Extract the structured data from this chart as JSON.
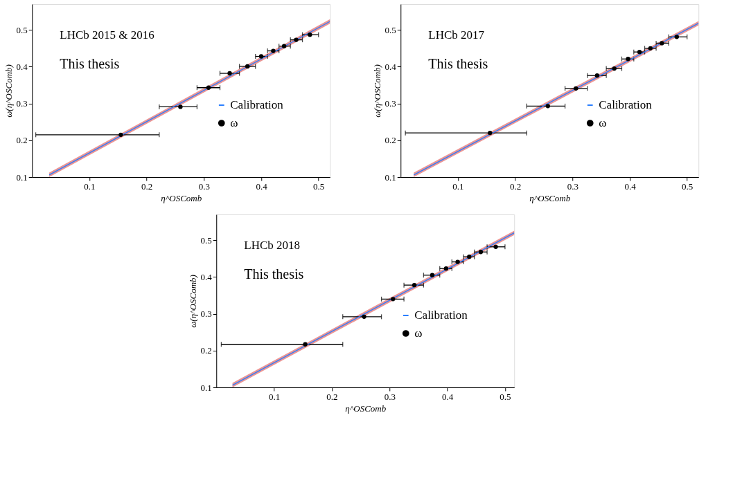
{
  "chart_data": [
    {
      "type": "scatter",
      "xlabel": "η^OSComb",
      "ylabel": "ω(η^OSComb)",
      "annotations": [
        "LHCb 2015 & 2016",
        "This thesis"
      ],
      "xlim": [
        0.0,
        0.52
      ],
      "ylim": [
        0.1,
        0.57
      ],
      "xticks": [
        0.1,
        0.2,
        0.3,
        0.4,
        0.5
      ],
      "yticks": [
        0.1,
        0.2,
        0.3,
        0.4,
        0.5
      ],
      "grid": false,
      "legend": "right",
      "marker": "circle",
      "series": [
        {
          "name": "Calibration",
          "type": "line",
          "marker": "none",
          "color": "#2a7fff",
          "x": [
            0.03,
            0.52
          ],
          "values": [
            0.106,
            0.523
          ],
          "lower": [
            0.1,
            0.517
          ],
          "upper": [
            0.112,
            0.529
          ]
        },
        {
          "name": "ω",
          "color": "#000000",
          "x": [
            0.155,
            0.259,
            0.308,
            0.345,
            0.376,
            0.4,
            0.421,
            0.44,
            0.461,
            0.485
          ],
          "values": [
            0.215,
            0.291,
            0.343,
            0.382,
            0.401,
            0.428,
            0.443,
            0.456,
            0.473,
            0.487
          ],
          "xerrors": [
            [
              0.0065,
              0.222
            ],
            [
              0.222,
              0.288
            ],
            [
              0.288,
              0.328
            ],
            [
              0.328,
              0.362
            ],
            [
              0.362,
              0.39
            ],
            [
              0.39,
              0.411
            ],
            [
              0.411,
              0.431
            ],
            [
              0.431,
              0.451
            ],
            [
              0.451,
              0.472
            ],
            [
              0.472,
              0.5
            ]
          ]
        }
      ]
    },
    {
      "type": "scatter",
      "xlabel": "η^OSComb",
      "ylabel": "ω(η^OSComb)",
      "annotations": [
        "LHCb 2017",
        "This thesis"
      ],
      "xlim": [
        0.0,
        0.52
      ],
      "ylim": [
        0.1,
        0.57
      ],
      "xticks": [
        0.1,
        0.2,
        0.3,
        0.4,
        0.5
      ],
      "yticks": [
        0.1,
        0.2,
        0.3,
        0.4,
        0.5
      ],
      "grid": false,
      "legend": "right",
      "marker": "circle",
      "series": [
        {
          "name": "Calibration",
          "type": "line",
          "marker": "none",
          "color": "#2a7fff",
          "x": [
            0.023,
            0.52
          ],
          "values": [
            0.106,
            0.518
          ],
          "lower": [
            0.1,
            0.512
          ],
          "upper": [
            0.112,
            0.524
          ]
        },
        {
          "name": "ω",
          "color": "#000000",
          "x": [
            0.156,
            0.257,
            0.306,
            0.343,
            0.373,
            0.397,
            0.417,
            0.436,
            0.456,
            0.482
          ],
          "values": [
            0.22,
            0.293,
            0.341,
            0.376,
            0.395,
            0.421,
            0.44,
            0.45,
            0.464,
            0.481
          ],
          "xerrors": [
            [
              0.0083,
              0.22
            ],
            [
              0.22,
              0.287
            ],
            [
              0.287,
              0.326
            ],
            [
              0.326,
              0.359
            ],
            [
              0.359,
              0.386
            ],
            [
              0.386,
              0.407
            ],
            [
              0.407,
              0.426
            ],
            [
              0.426,
              0.446
            ],
            [
              0.446,
              0.468
            ],
            [
              0.468,
              0.5
            ]
          ]
        }
      ]
    },
    {
      "type": "scatter",
      "xlabel": "η^OSComb",
      "ylabel": "ω(η^OSComb)",
      "annotations": [
        "LHCb 2018",
        "This thesis"
      ],
      "xlim": [
        0.0,
        0.516
      ],
      "ylim": [
        0.1,
        0.57
      ],
      "xticks": [
        0.1,
        0.2,
        0.3,
        0.4,
        0.5
      ],
      "yticks": [
        0.1,
        0.2,
        0.3,
        0.4,
        0.5
      ],
      "grid": false,
      "legend": "right",
      "marker": "circle",
      "series": [
        {
          "name": "Calibration",
          "type": "line",
          "marker": "none",
          "color": "#2a7fff",
          "x": [
            0.028,
            0.516
          ],
          "values": [
            0.106,
            0.52
          ],
          "lower": [
            0.1,
            0.514
          ],
          "upper": [
            0.112,
            0.526
          ]
        },
        {
          "name": "ω",
          "color": "#000000",
          "x": [
            0.154,
            0.256,
            0.306,
            0.343,
            0.374,
            0.398,
            0.418,
            0.438,
            0.458,
            0.484
          ],
          "values": [
            0.217,
            0.292,
            0.34,
            0.378,
            0.405,
            0.423,
            0.441,
            0.455,
            0.468,
            0.482
          ],
          "xerrors": [
            [
              0.0086,
              0.219
            ],
            [
              0.219,
              0.286
            ],
            [
              0.286,
              0.325
            ],
            [
              0.325,
              0.359
            ],
            [
              0.359,
              0.387
            ],
            [
              0.387,
              0.408
            ],
            [
              0.408,
              0.428
            ],
            [
              0.428,
              0.447
            ],
            [
              0.447,
              0.469
            ],
            [
              0.469,
              0.5
            ]
          ]
        }
      ]
    }
  ]
}
